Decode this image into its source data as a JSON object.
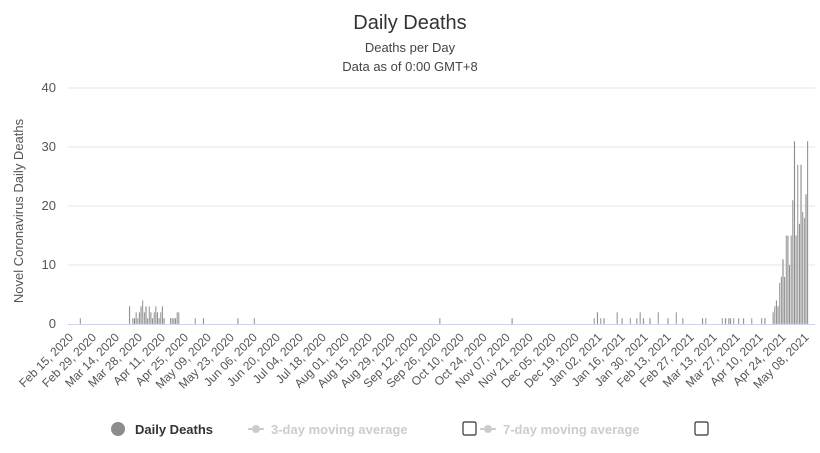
{
  "chart_data": {
    "type": "bar",
    "title": "Daily Deaths",
    "subtitle_lines": [
      "Deaths per Day",
      "Data as of 0:00 GMT+8"
    ],
    "ylabel": "Novel Coronavirus Daily Deaths",
    "xlabel": "",
    "ylim": [
      0,
      40
    ],
    "yticks": [
      0,
      10,
      20,
      30,
      40
    ],
    "grid": true,
    "start_date": "2020-02-15",
    "end_date": "2021-05-15",
    "x_tick_labels": [
      "Feb 15, 2020",
      "Feb 29, 2020",
      "Mar 14, 2020",
      "Mar 28, 2020",
      "Apr 11, 2020",
      "Apr 25, 2020",
      "May 09, 2020",
      "May 23, 2020",
      "Jun 06, 2020",
      "Jun 20, 2020",
      "Jul 04, 2020",
      "Jul 18, 2020",
      "Aug 01, 2020",
      "Aug 15, 2020",
      "Aug 29, 2020",
      "Sep 12, 2020",
      "Sep 26, 2020",
      "Oct 10, 2020",
      "Oct 24, 2020",
      "Nov 07, 2020",
      "Nov 21, 2020",
      "Dec 05, 2020",
      "Dec 19, 2020",
      "Jan 02, 2021",
      "Jan 16, 2021",
      "Jan 30, 2021",
      "Feb 13, 2021",
      "Feb 27, 2021",
      "Mar 13, 2021",
      "Mar 27, 2021",
      "Apr 10, 2021",
      "Apr 24, 2021",
      "May 08, 2021"
    ],
    "series": [
      {
        "name": "Daily Deaths",
        "color": "#8c8c8c",
        "points": [
          [
            "2020-02-22",
            1
          ],
          [
            "2020-03-23",
            3
          ],
          [
            "2020-03-25",
            1
          ],
          [
            "2020-03-26",
            1
          ],
          [
            "2020-03-27",
            2
          ],
          [
            "2020-03-28",
            1
          ],
          [
            "2020-03-29",
            2
          ],
          [
            "2020-03-30",
            3
          ],
          [
            "2020-03-31",
            4
          ],
          [
            "2020-04-01",
            2
          ],
          [
            "2020-04-02",
            3
          ],
          [
            "2020-04-03",
            1
          ],
          [
            "2020-04-04",
            3
          ],
          [
            "2020-04-05",
            2
          ],
          [
            "2020-04-06",
            1
          ],
          [
            "2020-04-07",
            2
          ],
          [
            "2020-04-08",
            3
          ],
          [
            "2020-04-09",
            2
          ],
          [
            "2020-04-10",
            1
          ],
          [
            "2020-04-11",
            2
          ],
          [
            "2020-04-12",
            3
          ],
          [
            "2020-04-13",
            1
          ],
          [
            "2020-04-17",
            1
          ],
          [
            "2020-04-18",
            1
          ],
          [
            "2020-04-19",
            1
          ],
          [
            "2020-04-20",
            1
          ],
          [
            "2020-04-21",
            2
          ],
          [
            "2020-04-22",
            2
          ],
          [
            "2020-05-02",
            1
          ],
          [
            "2020-05-07",
            1
          ],
          [
            "2020-05-28",
            1
          ],
          [
            "2020-06-07",
            1
          ],
          [
            "2020-09-28",
            1
          ],
          [
            "2020-11-11",
            1
          ],
          [
            "2020-12-31",
            1
          ],
          [
            "2021-01-02",
            2
          ],
          [
            "2021-01-04",
            1
          ],
          [
            "2021-01-06",
            1
          ],
          [
            "2021-01-14",
            2
          ],
          [
            "2021-01-17",
            1
          ],
          [
            "2021-01-22",
            1
          ],
          [
            "2021-01-26",
            1
          ],
          [
            "2021-01-28",
            2
          ],
          [
            "2021-01-30",
            1
          ],
          [
            "2021-02-03",
            1
          ],
          [
            "2021-02-08",
            2
          ],
          [
            "2021-02-14",
            1
          ],
          [
            "2021-02-19",
            2
          ],
          [
            "2021-02-23",
            1
          ],
          [
            "2021-03-07",
            1
          ],
          [
            "2021-03-09",
            1
          ],
          [
            "2021-03-19",
            1
          ],
          [
            "2021-03-21",
            1
          ],
          [
            "2021-03-23",
            1
          ],
          [
            "2021-03-24",
            1
          ],
          [
            "2021-03-26",
            1
          ],
          [
            "2021-03-29",
            1
          ],
          [
            "2021-04-01",
            1
          ],
          [
            "2021-04-06",
            1
          ],
          [
            "2021-04-12",
            1
          ],
          [
            "2021-04-14",
            1
          ],
          [
            "2021-04-19",
            2
          ],
          [
            "2021-04-20",
            3
          ],
          [
            "2021-04-21",
            4
          ],
          [
            "2021-04-22",
            3
          ],
          [
            "2021-04-23",
            7
          ],
          [
            "2021-04-24",
            8
          ],
          [
            "2021-04-25",
            11
          ],
          [
            "2021-04-26",
            8
          ],
          [
            "2021-04-27",
            15
          ],
          [
            "2021-04-28",
            15
          ],
          [
            "2021-04-29",
            10
          ],
          [
            "2021-04-30",
            15
          ],
          [
            "2021-05-01",
            21
          ],
          [
            "2021-05-02",
            31
          ],
          [
            "2021-05-03",
            15
          ],
          [
            "2021-05-04",
            27
          ],
          [
            "2021-05-05",
            17
          ],
          [
            "2021-05-06",
            27
          ],
          [
            "2021-05-07",
            19
          ],
          [
            "2021-05-08",
            18
          ],
          [
            "2021-05-09",
            22
          ],
          [
            "2021-05-10",
            31
          ]
        ]
      },
      {
        "name": "3-day moving average",
        "color": "#cccccc",
        "points": []
      },
      {
        "name": "7-day moving average",
        "color": "#cccccc",
        "points": []
      }
    ],
    "legend": {
      "placement": "bottom",
      "items": [
        {
          "label": "Daily Deaths",
          "color": "#8c8c8c",
          "label_color": "#333333",
          "marker": "circle",
          "checkbox": false
        },
        {
          "label": "3-day moving average",
          "color": "#cccccc",
          "label_color": "#cccccc",
          "marker": "line-dot",
          "checkbox": true
        },
        {
          "label": "7-day moving average",
          "color": "#cccccc",
          "label_color": "#cccccc",
          "marker": "line-dot",
          "checkbox": true
        }
      ]
    }
  }
}
